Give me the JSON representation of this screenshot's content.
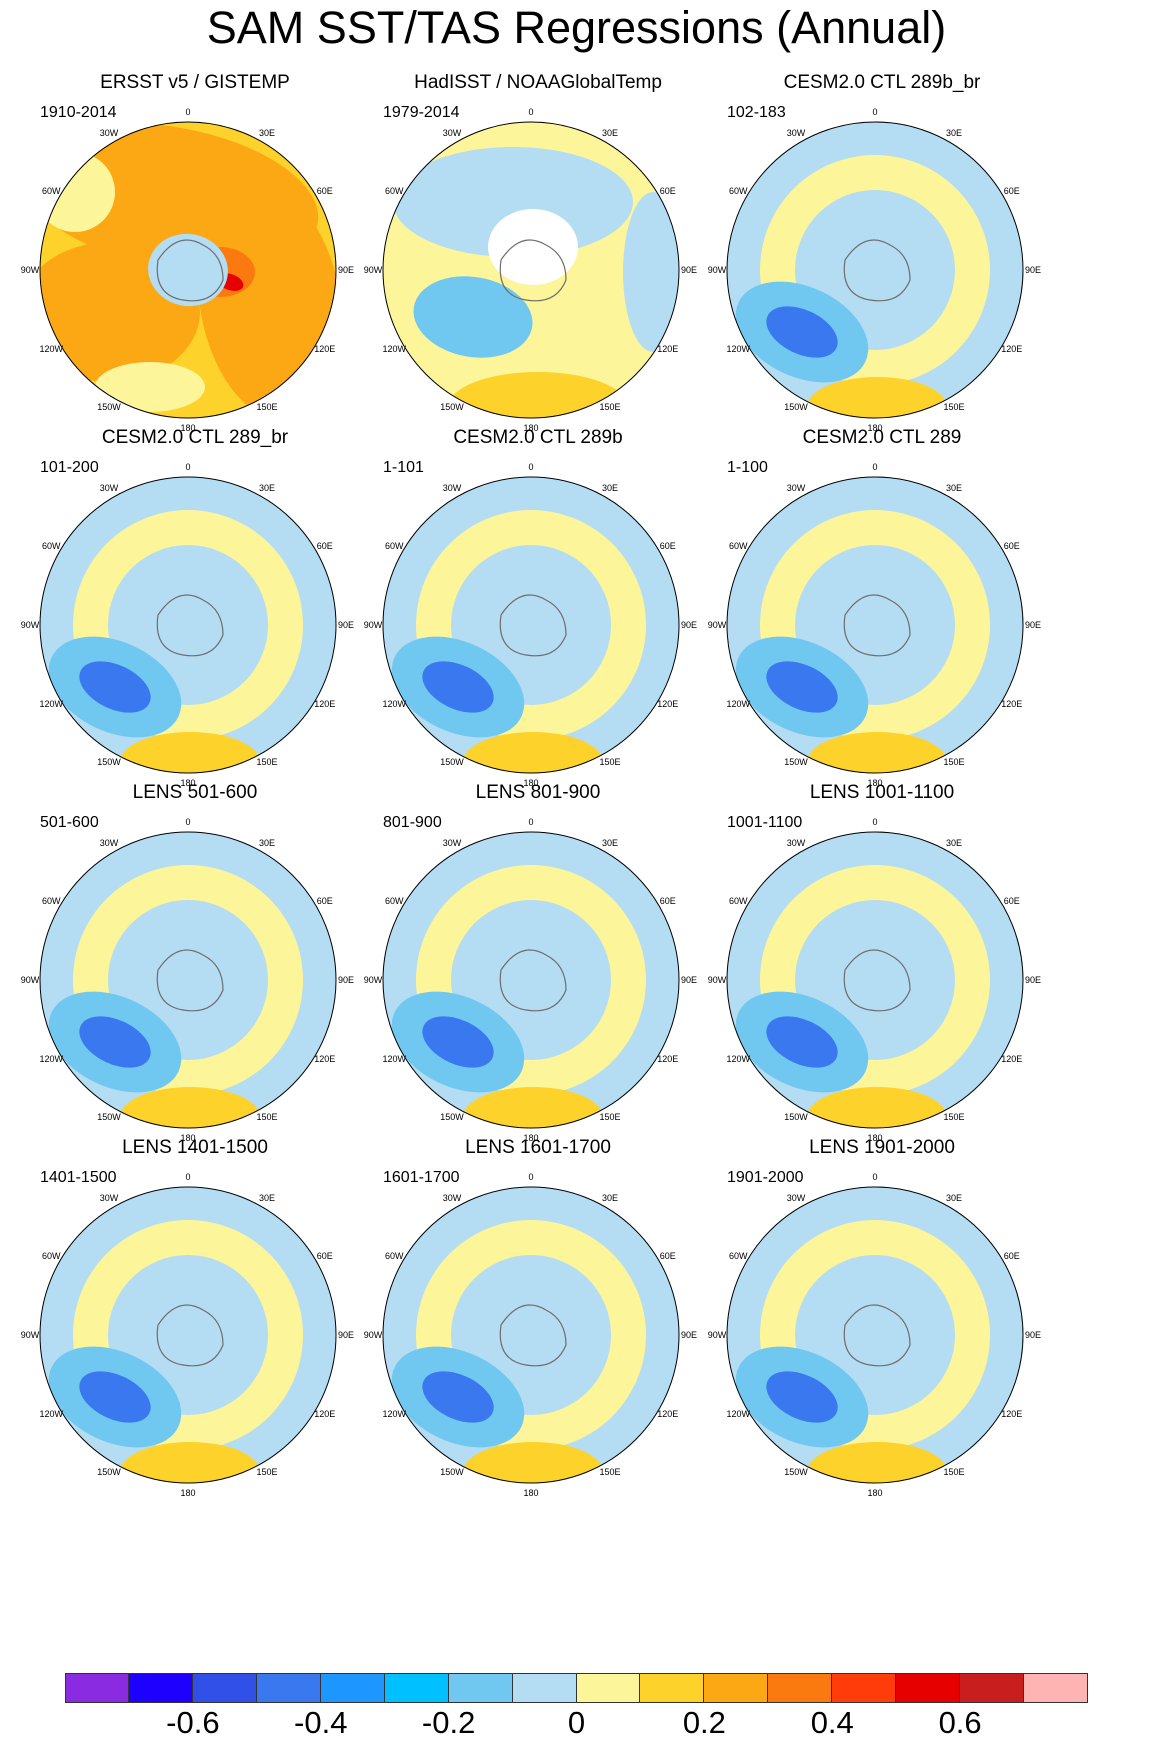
{
  "title": "SAM SST/TAS Regressions (Annual)",
  "lon_labels": [
    "0",
    "30E",
    "60E",
    "90E",
    "120E",
    "150E",
    "180",
    "150W",
    "120W",
    "90W",
    "60W",
    "30W"
  ],
  "panels": [
    {
      "title": "ERSST v5 / GISTEMP",
      "period": "1910-2014",
      "pattern": "ersst"
    },
    {
      "title": "HadISST / NOAAGlobalTemp",
      "period": "1979-2014",
      "pattern": "hadisst"
    },
    {
      "title": "CESM2.0 CTL 289b_br",
      "period": "102-183",
      "pattern": "model"
    },
    {
      "title": "CESM2.0 CTL 289_br",
      "period": "101-200",
      "pattern": "model"
    },
    {
      "title": "CESM2.0 CTL 289b",
      "period": "1-101",
      "pattern": "model"
    },
    {
      "title": "CESM2.0 CTL 289",
      "period": "1-100",
      "pattern": "model"
    },
    {
      "title": "LENS 501-600",
      "period": "501-600",
      "pattern": "model"
    },
    {
      "title": "LENS 801-900",
      "period": "801-900",
      "pattern": "model"
    },
    {
      "title": "LENS 1001-1100",
      "period": "1001-1100",
      "pattern": "model"
    },
    {
      "title": "LENS 1401-1500",
      "period": "1401-1500",
      "pattern": "model"
    },
    {
      "title": "LENS 1601-1700",
      "period": "1601-1700",
      "pattern": "model"
    },
    {
      "title": "LENS 1901-2000",
      "period": "1901-2000",
      "pattern": "model"
    }
  ],
  "colorbar": {
    "colors": [
      "#8a2be2",
      "#1e00ff",
      "#3050e8",
      "#3a78f0",
      "#1e96ff",
      "#00c0ff",
      "#70c8f0",
      "#b4dcf2",
      "#fdf59a",
      "#fdd22a",
      "#fba814",
      "#fb7a10",
      "#ff3c0a",
      "#e60000",
      "#c81e1e",
      "#ffb4b4"
    ],
    "tick_labels": [
      "-0.6",
      "-0.4",
      "-0.2",
      "0",
      "0.2",
      "0.4",
      "0.6"
    ]
  },
  "palette": {
    "ocean_neutral_pos": "#fdf59a",
    "ocean_neutral_neg": "#b4dcf2",
    "pos_mid": "#fdd22a",
    "pos_strong": "#fba814",
    "pos_stronger": "#fb7a10",
    "pos_max": "#e60000",
    "neg_mid": "#70c8f0",
    "neg_strong": "#3a78f0",
    "land": "#ffffff",
    "coast": "#6e6e6e"
  }
}
